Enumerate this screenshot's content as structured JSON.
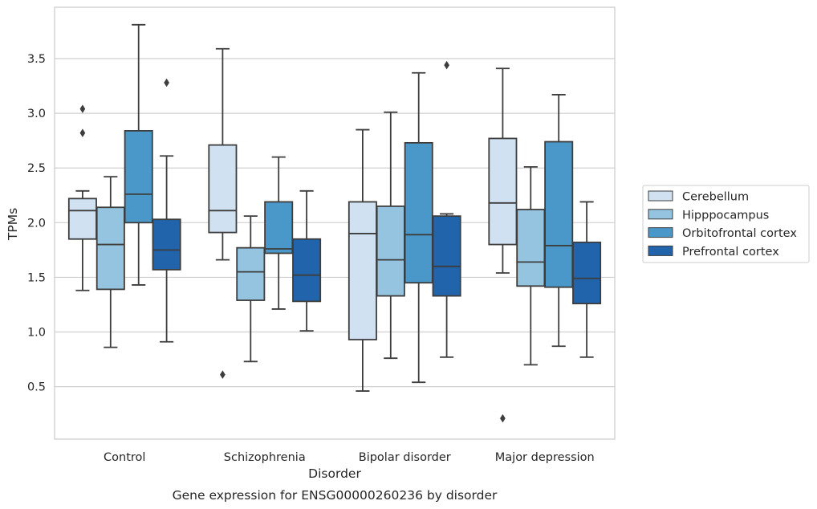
{
  "chart_data": {
    "type": "box",
    "caption": "Gene expression for ENSG00000260236 by disorder",
    "xlabel": "Disorder",
    "ylabel": "TPMs",
    "ylim": [
      0.02,
      3.97
    ],
    "yticks": [
      0.5,
      1.0,
      1.5,
      2.0,
      2.5,
      3.0,
      3.5
    ],
    "ytick_labels": [
      "0.5",
      "1.0",
      "1.5",
      "2.0",
      "2.5",
      "3.0",
      "3.5"
    ],
    "grid": "horizontal",
    "legend_position": "right",
    "categories": [
      "Control",
      "Schizophrenia",
      "Bipolar disorder",
      "Major depression"
    ],
    "series": [
      {
        "name": "Cerebellum",
        "color": "#d0e1f2",
        "boxes": [
          {
            "whisker_low": 1.38,
            "q1": 1.85,
            "median": 2.11,
            "q3": 2.22,
            "whisker_high": 2.29,
            "outliers": [
              3.04,
              2.82
            ]
          },
          {
            "whisker_low": 1.66,
            "q1": 1.91,
            "median": 2.11,
            "q3": 2.71,
            "whisker_high": 3.59,
            "outliers": [
              0.61
            ]
          },
          {
            "whisker_low": 0.46,
            "q1": 0.93,
            "median": 1.9,
            "q3": 2.19,
            "whisker_high": 2.85,
            "outliers": []
          },
          {
            "whisker_low": 1.54,
            "q1": 1.8,
            "median": 2.18,
            "q3": 2.77,
            "whisker_high": 3.41,
            "outliers": [
              0.21
            ]
          }
        ]
      },
      {
        "name": "Hipppocampus",
        "color": "#94c4df",
        "boxes": [
          {
            "whisker_low": 0.86,
            "q1": 1.39,
            "median": 1.8,
            "q3": 2.14,
            "whisker_high": 2.42,
            "outliers": []
          },
          {
            "whisker_low": 0.73,
            "q1": 1.29,
            "median": 1.55,
            "q3": 1.77,
            "whisker_high": 2.06,
            "outliers": []
          },
          {
            "whisker_low": 0.76,
            "q1": 1.33,
            "median": 1.66,
            "q3": 2.15,
            "whisker_high": 3.01,
            "outliers": []
          },
          {
            "whisker_low": 0.7,
            "q1": 1.42,
            "median": 1.64,
            "q3": 2.12,
            "whisker_high": 2.51,
            "outliers": []
          }
        ]
      },
      {
        "name": "Orbitofrontal cortex",
        "color": "#4a98c9",
        "boxes": [
          {
            "whisker_low": 1.43,
            "q1": 2.0,
            "median": 2.26,
            "q3": 2.84,
            "whisker_high": 3.81,
            "outliers": []
          },
          {
            "whisker_low": 1.21,
            "q1": 1.72,
            "median": 1.76,
            "q3": 2.19,
            "whisker_high": 2.6,
            "outliers": []
          },
          {
            "whisker_low": 0.54,
            "q1": 1.45,
            "median": 1.89,
            "q3": 2.73,
            "whisker_high": 3.37,
            "outliers": []
          },
          {
            "whisker_low": 0.87,
            "q1": 1.41,
            "median": 1.79,
            "q3": 2.74,
            "whisker_high": 3.17,
            "outliers": []
          }
        ]
      },
      {
        "name": "Prefrontal cortex",
        "color": "#2164ab",
        "boxes": [
          {
            "whisker_low": 0.91,
            "q1": 1.57,
            "median": 1.75,
            "q3": 2.03,
            "whisker_high": 2.61,
            "outliers": [
              3.28
            ]
          },
          {
            "whisker_low": 1.01,
            "q1": 1.28,
            "median": 1.52,
            "q3": 1.85,
            "whisker_high": 2.29,
            "outliers": []
          },
          {
            "whisker_low": 0.77,
            "q1": 1.33,
            "median": 1.6,
            "q3": 2.06,
            "whisker_high": 2.08,
            "outliers": [
              3.44
            ]
          },
          {
            "whisker_low": 0.77,
            "q1": 1.26,
            "median": 1.49,
            "q3": 1.82,
            "whisker_high": 2.19,
            "outliers": []
          }
        ]
      }
    ]
  }
}
